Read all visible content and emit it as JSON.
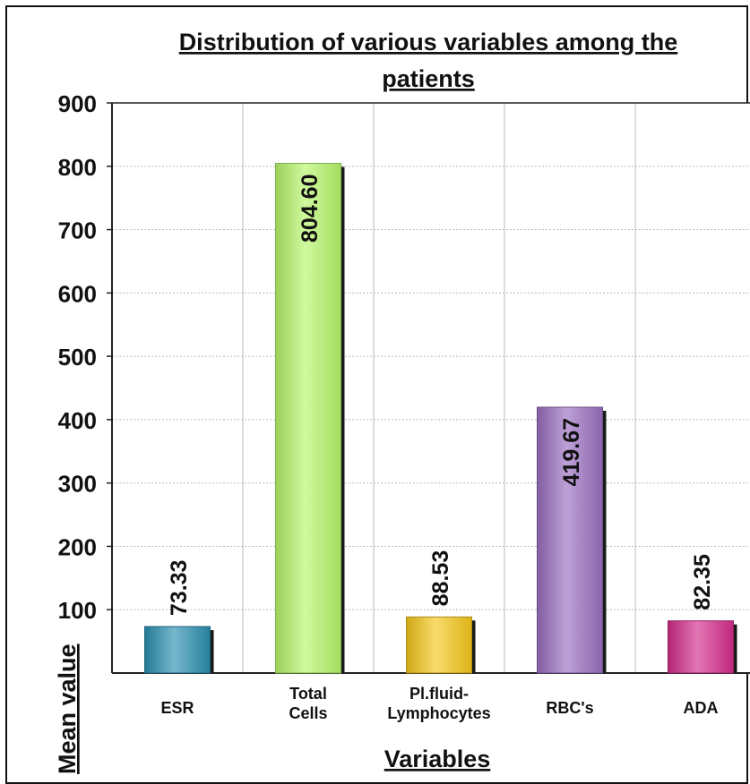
{
  "chart_data": {
    "type": "bar",
    "title": "Distribution of various variables among the patients",
    "title_lines": [
      "Distribution of various variables among the",
      "patients"
    ],
    "xlabel": "Variables",
    "ylabel": "Mean value",
    "categories": [
      "ESR",
      "Total Cells",
      "Pl.fluid-Lymphocytes",
      "RBC's",
      "ADA"
    ],
    "category_lines": [
      [
        "ESR"
      ],
      [
        "Total",
        "Cells"
      ],
      [
        "Pl.fluid-",
        "Lymphocytes"
      ],
      [
        "RBC's"
      ],
      [
        "ADA"
      ]
    ],
    "values": [
      73.33,
      804.6,
      88.53,
      419.67,
      82.35
    ],
    "data_labels": [
      "73.33",
      "804.60",
      "88.53",
      "419.67",
      "82.35"
    ],
    "colors": [
      "#2a8fb0",
      "#b6f56a",
      "#f5c71a",
      "#9a6fc0",
      "#d42c8c"
    ],
    "ylim": [
      0,
      900
    ],
    "yticks": [
      100,
      200,
      300,
      400,
      500,
      600,
      700,
      800,
      900
    ],
    "grid": true,
    "legend": "none"
  }
}
